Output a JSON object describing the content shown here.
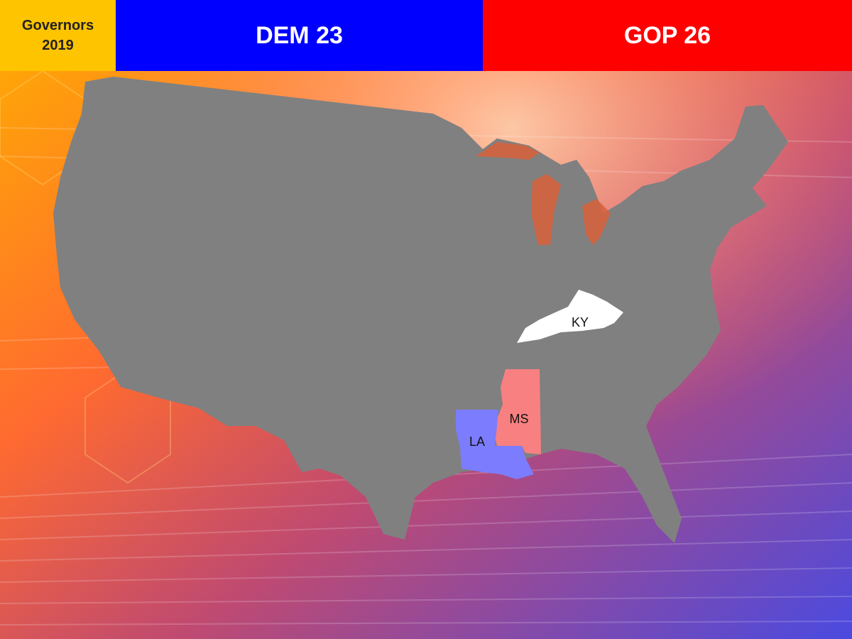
{
  "header": {
    "title_line1": "Governors",
    "title_line2": "2019",
    "dem_label": "DEM 23",
    "gop_label": "GOP 26"
  },
  "map": {
    "highlighted_states": [
      {
        "code": "KY",
        "label": "KY",
        "fill": "#ffffff"
      },
      {
        "code": "MS",
        "label": "MS",
        "fill": "#f88080"
      },
      {
        "code": "LA",
        "label": "LA",
        "fill": "#7c7cff"
      }
    ],
    "base_fill": "#808080"
  },
  "colors": {
    "dem": "#0000ff",
    "gop": "#ff0000",
    "title_bg": "#ffc400"
  }
}
